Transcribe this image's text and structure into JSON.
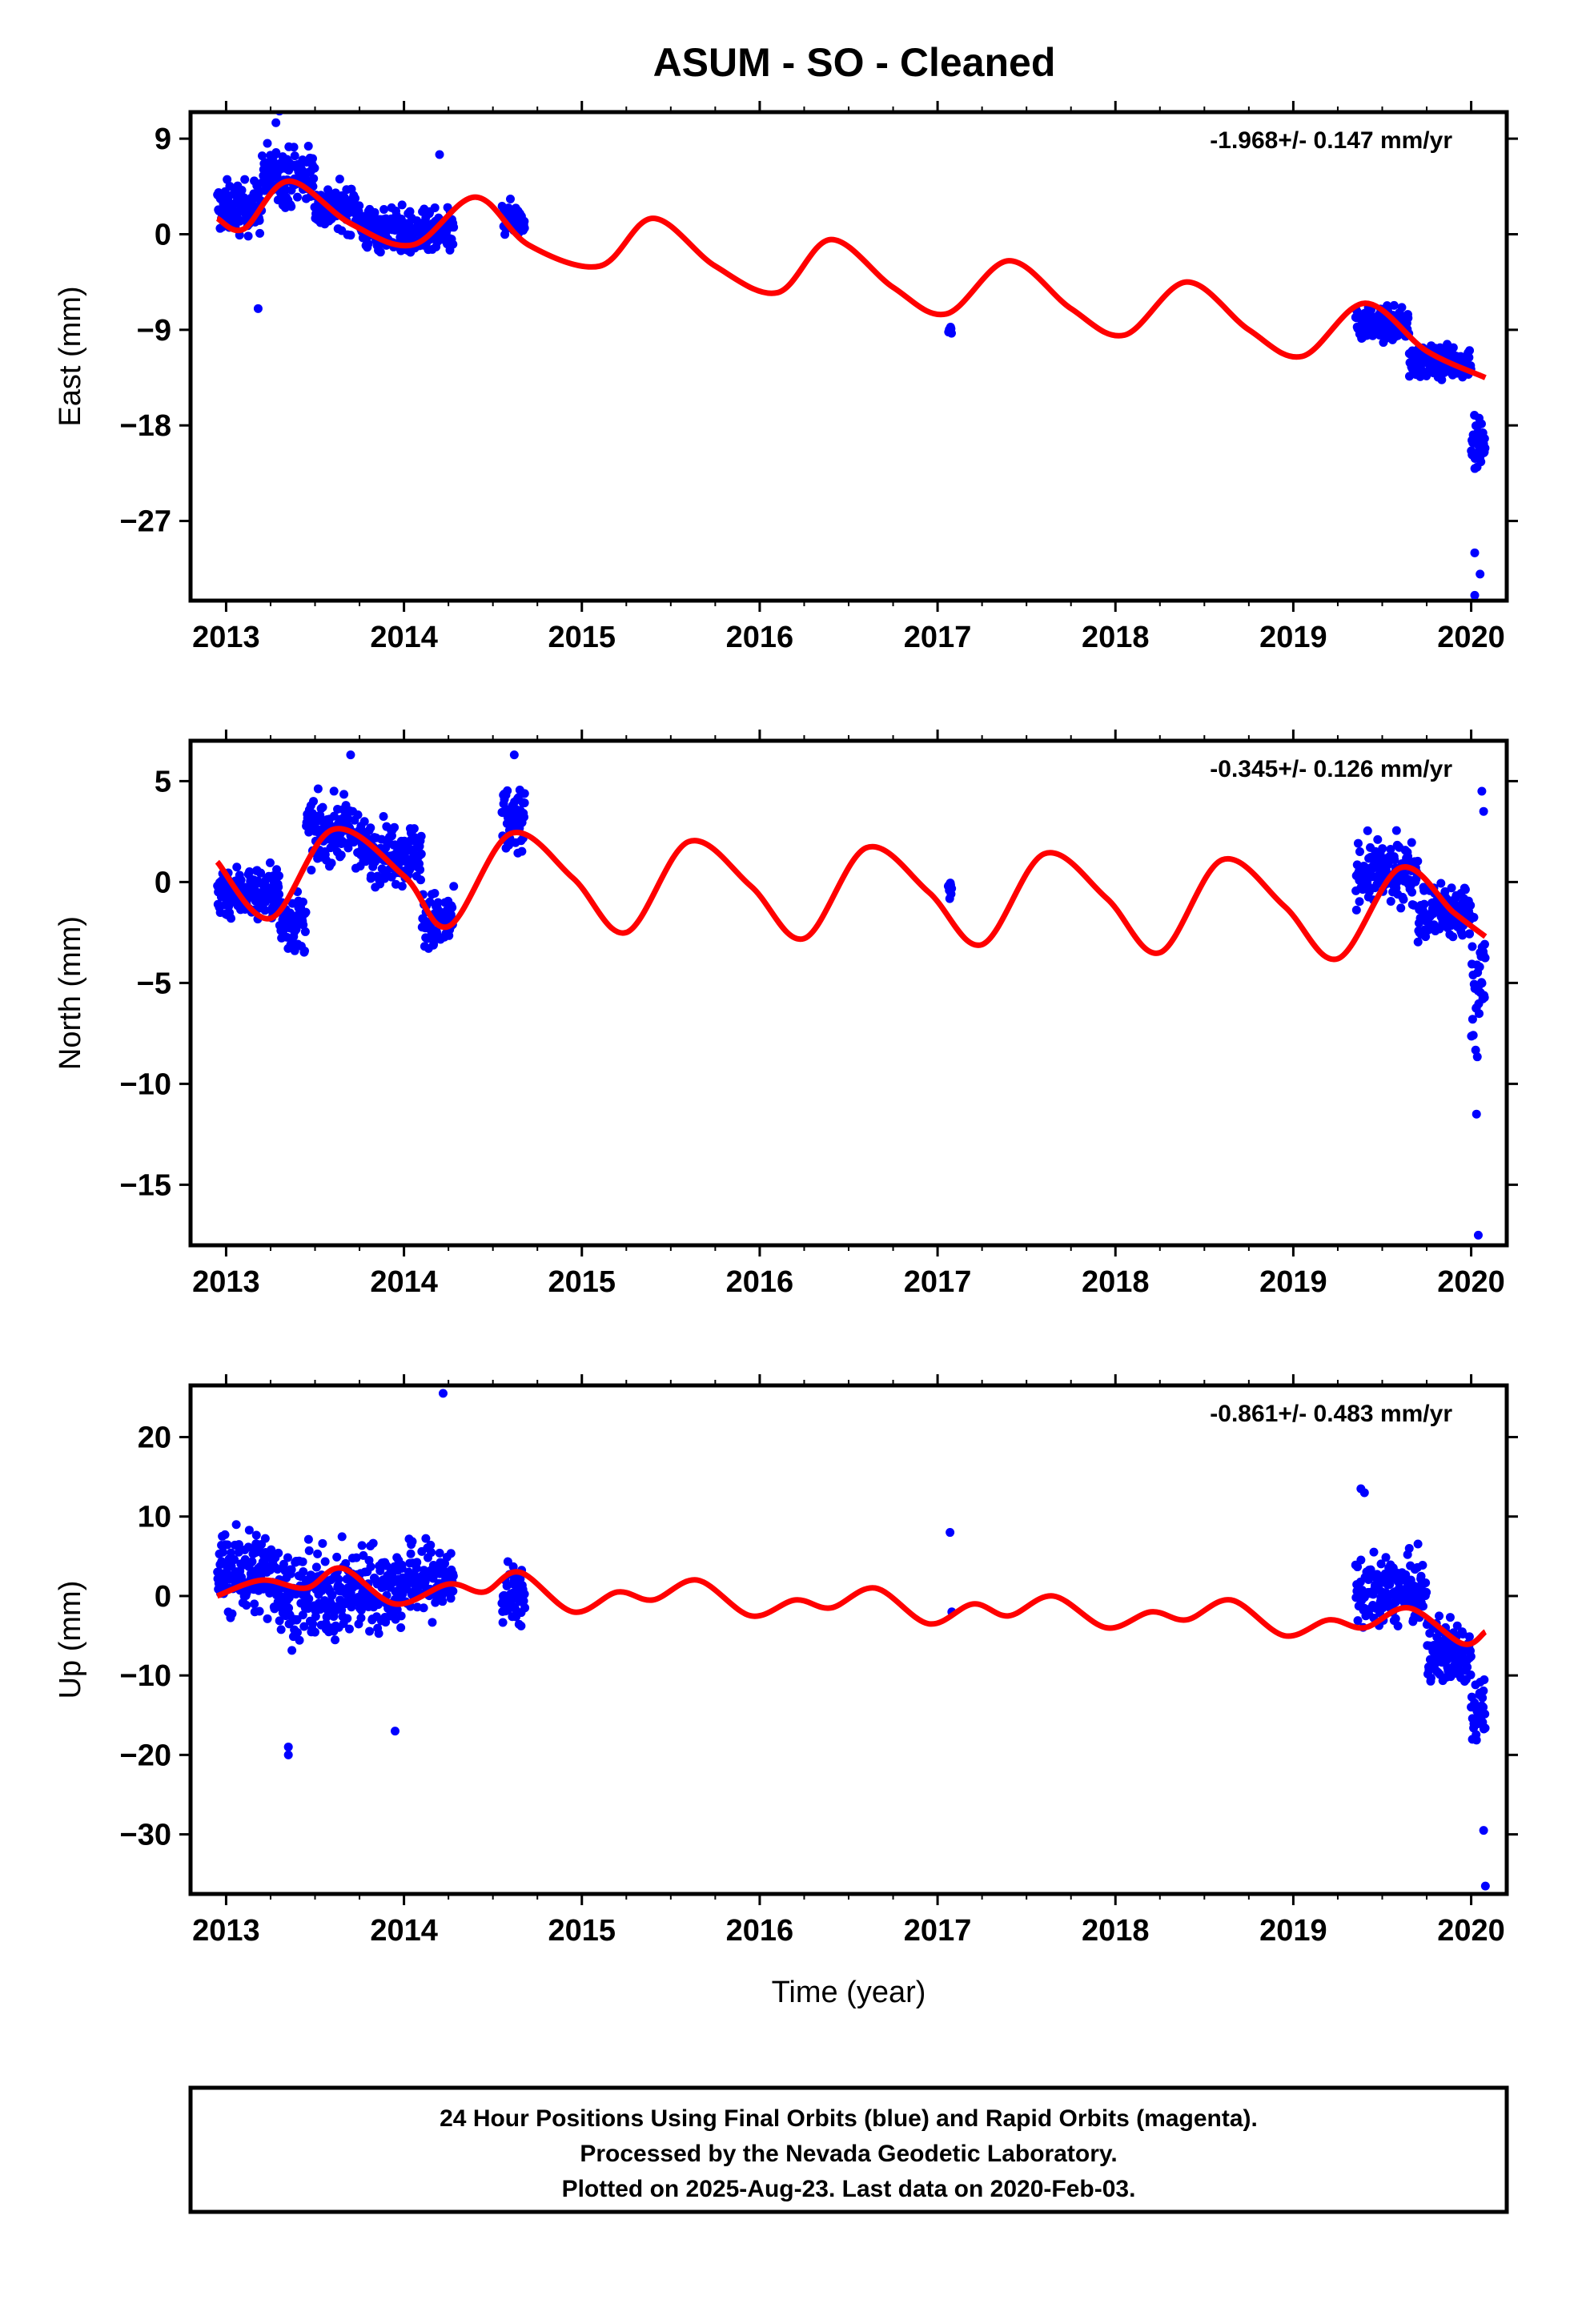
{
  "title": "ASUM  - SO - Cleaned",
  "footer": {
    "lines": [
      "24 Hour Positions Using Final Orbits (blue) and Rapid Orbits (magenta).",
      "Processed by the Nevada Geodetic Laboratory.",
      "Plotted on 2025-Aug-23. Last data on 2020-Feb-03."
    ]
  },
  "colors": {
    "points": "#0000ff",
    "model": "#ff0000",
    "frame": "#000000"
  },
  "chart_data": [
    {
      "type": "scatter",
      "panel": "east",
      "ylabel": "East (mm)",
      "xlabel": "",
      "rate_text": "-1.968+/- 0.147 mm/yr",
      "xlim": [
        2012.8,
        2020.2
      ],
      "ylim": [
        -34.5,
        11.5
      ],
      "xticks": [
        2013,
        2014,
        2015,
        2016,
        2017,
        2018,
        2019,
        2020
      ],
      "yticks": [
        9,
        0,
        -9,
        -18,
        -27
      ],
      "ytick_labels": [
        "9",
        "0",
        "−9",
        "−18",
        "−27"
      ],
      "segments": [
        {
          "x0": 2012.95,
          "x1": 2013.2,
          "center": 2.5,
          "spread": 4.0
        },
        {
          "x0": 2013.2,
          "x1": 2013.5,
          "center": 5.5,
          "spread": 4.5
        },
        {
          "x0": 2013.5,
          "x1": 2013.75,
          "center": 2.5,
          "spread": 3.5
        },
        {
          "x0": 2013.75,
          "x1": 2014.0,
          "center": 0.5,
          "spread": 3.5
        },
        {
          "x0": 2014.0,
          "x1": 2014.28,
          "center": 0.0,
          "spread": 3.5
        },
        {
          "x0": 2014.55,
          "x1": 2014.68,
          "center": 1.5,
          "spread": 2.5
        },
        {
          "x0": 2017.06,
          "x1": 2017.08,
          "center": -9.0,
          "spread": 0.6
        },
        {
          "x0": 2019.35,
          "x1": 2019.65,
          "center": -8.5,
          "spread": 2.5
        },
        {
          "x0": 2019.65,
          "x1": 2020.0,
          "center": -12.0,
          "spread": 2.5
        },
        {
          "x0": 2020.0,
          "x1": 2020.08,
          "center": -20.0,
          "spread": 6.0
        }
      ],
      "outliers": [
        {
          "x": 2013.18,
          "y": -7.0
        },
        {
          "x": 2013.28,
          "y": 10.5
        },
        {
          "x": 2013.3,
          "y": 11.6
        },
        {
          "x": 2014.2,
          "y": 7.5
        },
        {
          "x": 2020.02,
          "y": -30.0
        },
        {
          "x": 2020.05,
          "y": -32.0
        },
        {
          "x": 2020.02,
          "y": -34.0
        }
      ],
      "model": [
        {
          "x": 2012.95,
          "y": 1.5
        },
        {
          "x": 2013.1,
          "y": 0.5
        },
        {
          "x": 2013.35,
          "y": 5.0
        },
        {
          "x": 2013.7,
          "y": 1.0
        },
        {
          "x": 2014.05,
          "y": -1.0
        },
        {
          "x": 2014.4,
          "y": 3.5
        },
        {
          "x": 2014.7,
          "y": -1.0
        },
        {
          "x": 2015.1,
          "y": -3.0
        },
        {
          "x": 2015.4,
          "y": 1.5
        },
        {
          "x": 2015.75,
          "y": -3.0
        },
        {
          "x": 2016.1,
          "y": -5.5
        },
        {
          "x": 2016.4,
          "y": -0.5
        },
        {
          "x": 2016.75,
          "y": -5.0
        },
        {
          "x": 2017.05,
          "y": -7.5
        },
        {
          "x": 2017.4,
          "y": -2.5
        },
        {
          "x": 2017.75,
          "y": -7.0
        },
        {
          "x": 2018.05,
          "y": -9.5
        },
        {
          "x": 2018.4,
          "y": -4.5
        },
        {
          "x": 2018.75,
          "y": -9.0
        },
        {
          "x": 2019.05,
          "y": -11.5
        },
        {
          "x": 2019.4,
          "y": -6.5
        },
        {
          "x": 2019.75,
          "y": -11.0
        },
        {
          "x": 2020.08,
          "y": -13.5
        }
      ]
    },
    {
      "type": "scatter",
      "panel": "north",
      "ylabel": "North (mm)",
      "xlabel": "",
      "rate_text": "-0.345+/- 0.126 mm/yr",
      "xlim": [
        2012.8,
        2020.2
      ],
      "ylim": [
        -18.0,
        7.0
      ],
      "xticks": [
        2013,
        2014,
        2015,
        2016,
        2017,
        2018,
        2019,
        2020
      ],
      "yticks": [
        5,
        0,
        -5,
        -10,
        -15
      ],
      "ytick_labels": [
        "5",
        "0",
        "−5",
        "−10",
        "−15"
      ],
      "segments": [
        {
          "x0": 2012.95,
          "x1": 2013.3,
          "center": -0.5,
          "spread": 2.2
        },
        {
          "x0": 2013.3,
          "x1": 2013.45,
          "center": -2.0,
          "spread": 2.5
        },
        {
          "x0": 2013.45,
          "x1": 2013.75,
          "center": 2.5,
          "spread": 2.5
        },
        {
          "x0": 2013.75,
          "x1": 2014.1,
          "center": 1.5,
          "spread": 2.5
        },
        {
          "x0": 2014.1,
          "x1": 2014.28,
          "center": -2.0,
          "spread": 2.5
        },
        {
          "x0": 2014.55,
          "x1": 2014.68,
          "center": 3.0,
          "spread": 3.0
        },
        {
          "x0": 2017.06,
          "x1": 2017.08,
          "center": -0.5,
          "spread": 0.8
        },
        {
          "x0": 2019.35,
          "x1": 2019.7,
          "center": 0.5,
          "spread": 2.5
        },
        {
          "x0": 2019.7,
          "x1": 2020.0,
          "center": -1.5,
          "spread": 2.5
        },
        {
          "x0": 2020.0,
          "x1": 2020.08,
          "center": -5.0,
          "spread": 5.0
        }
      ],
      "outliers": [
        {
          "x": 2020.03,
          "y": -11.5
        },
        {
          "x": 2020.04,
          "y": -17.5
        },
        {
          "x": 2020.06,
          "y": 4.5
        },
        {
          "x": 2020.07,
          "y": 3.5
        },
        {
          "x": 2014.62,
          "y": 6.3
        },
        {
          "x": 2013.7,
          "y": 6.3
        }
      ],
      "model": [
        {
          "x": 2012.95,
          "y": 1.0
        },
        {
          "x": 2013.25,
          "y": -1.8
        },
        {
          "x": 2013.6,
          "y": 2.6
        },
        {
          "x": 2014.0,
          "y": 0.3
        },
        {
          "x": 2014.25,
          "y": -2.2
        },
        {
          "x": 2014.6,
          "y": 2.4
        },
        {
          "x": 2014.95,
          "y": 0.2
        },
        {
          "x": 2015.25,
          "y": -2.5
        },
        {
          "x": 2015.6,
          "y": 2.0
        },
        {
          "x": 2015.95,
          "y": -0.2
        },
        {
          "x": 2016.25,
          "y": -2.8
        },
        {
          "x": 2016.6,
          "y": 1.7
        },
        {
          "x": 2016.95,
          "y": -0.5
        },
        {
          "x": 2017.25,
          "y": -3.1
        },
        {
          "x": 2017.6,
          "y": 1.4
        },
        {
          "x": 2017.95,
          "y": -0.8
        },
        {
          "x": 2018.25,
          "y": -3.5
        },
        {
          "x": 2018.6,
          "y": 1.1
        },
        {
          "x": 2018.95,
          "y": -1.2
        },
        {
          "x": 2019.25,
          "y": -3.8
        },
        {
          "x": 2019.6,
          "y": 0.7
        },
        {
          "x": 2019.9,
          "y": -1.5
        },
        {
          "x": 2020.08,
          "y": -2.7
        }
      ]
    },
    {
      "type": "scatter",
      "panel": "up",
      "ylabel": "Up (mm)",
      "xlabel": "Time (year)",
      "rate_text": "-0.861+/- 0.483 mm/yr",
      "xlim": [
        2012.8,
        2020.2
      ],
      "ylim": [
        -37.5,
        26.5
      ],
      "xticks": [
        2013,
        2014,
        2015,
        2016,
        2017,
        2018,
        2019,
        2020
      ],
      "yticks": [
        20,
        10,
        0,
        -10,
        -20,
        -30
      ],
      "ytick_labels": [
        "20",
        "10",
        "0",
        "−10",
        "−20",
        "−30"
      ],
      "segments": [
        {
          "x0": 2012.95,
          "x1": 2013.3,
          "center": 3.0,
          "spread": 9.0
        },
        {
          "x0": 2013.3,
          "x1": 2013.7,
          "center": 0.0,
          "spread": 9.0
        },
        {
          "x0": 2013.7,
          "x1": 2014.0,
          "center": 1.0,
          "spread": 9.0
        },
        {
          "x0": 2014.0,
          "x1": 2014.28,
          "center": 2.0,
          "spread": 8.0
        },
        {
          "x0": 2014.55,
          "x1": 2014.68,
          "center": 0.0,
          "spread": 6.0
        },
        {
          "x0": 2019.35,
          "x1": 2019.75,
          "center": 0.5,
          "spread": 7.0
        },
        {
          "x0": 2019.75,
          "x1": 2020.0,
          "center": -7.0,
          "spread": 7.0
        },
        {
          "x0": 2020.0,
          "x1": 2020.08,
          "center": -14.0,
          "spread": 6.0
        }
      ],
      "outliers": [
        {
          "x": 2014.22,
          "y": 25.5
        },
        {
          "x": 2013.35,
          "y": -19.0
        },
        {
          "x": 2013.35,
          "y": -20.0
        },
        {
          "x": 2013.95,
          "y": -17.0
        },
        {
          "x": 2017.07,
          "y": 8.0
        },
        {
          "x": 2017.08,
          "y": -2.0
        },
        {
          "x": 2020.07,
          "y": -29.5
        },
        {
          "x": 2020.08,
          "y": -36.5
        },
        {
          "x": 2019.38,
          "y": 13.5
        },
        {
          "x": 2019.4,
          "y": 13.0
        }
      ],
      "model": [
        {
          "x": 2012.95,
          "y": 0.0
        },
        {
          "x": 2013.2,
          "y": 2.0
        },
        {
          "x": 2013.45,
          "y": 1.0
        },
        {
          "x": 2013.65,
          "y": 3.5
        },
        {
          "x": 2013.95,
          "y": -1.0
        },
        {
          "x": 2014.25,
          "y": 1.5
        },
        {
          "x": 2014.45,
          "y": 0.5
        },
        {
          "x": 2014.65,
          "y": 3.0
        },
        {
          "x": 2014.95,
          "y": -2.0
        },
        {
          "x": 2015.2,
          "y": 0.5
        },
        {
          "x": 2015.4,
          "y": -0.5
        },
        {
          "x": 2015.65,
          "y": 2.0
        },
        {
          "x": 2015.95,
          "y": -2.5
        },
        {
          "x": 2016.2,
          "y": -0.5
        },
        {
          "x": 2016.4,
          "y": -1.5
        },
        {
          "x": 2016.65,
          "y": 1.0
        },
        {
          "x": 2016.95,
          "y": -3.5
        },
        {
          "x": 2017.2,
          "y": -1.0
        },
        {
          "x": 2017.4,
          "y": -2.5
        },
        {
          "x": 2017.65,
          "y": 0.0
        },
        {
          "x": 2017.95,
          "y": -4.0
        },
        {
          "x": 2018.2,
          "y": -2.0
        },
        {
          "x": 2018.4,
          "y": -3.0
        },
        {
          "x": 2018.65,
          "y": -0.5
        },
        {
          "x": 2018.95,
          "y": -5.0
        },
        {
          "x": 2019.2,
          "y": -3.0
        },
        {
          "x": 2019.4,
          "y": -4.0
        },
        {
          "x": 2019.65,
          "y": -1.5
        },
        {
          "x": 2019.95,
          "y": -6.0
        },
        {
          "x": 2020.08,
          "y": -4.5
        }
      ]
    }
  ]
}
